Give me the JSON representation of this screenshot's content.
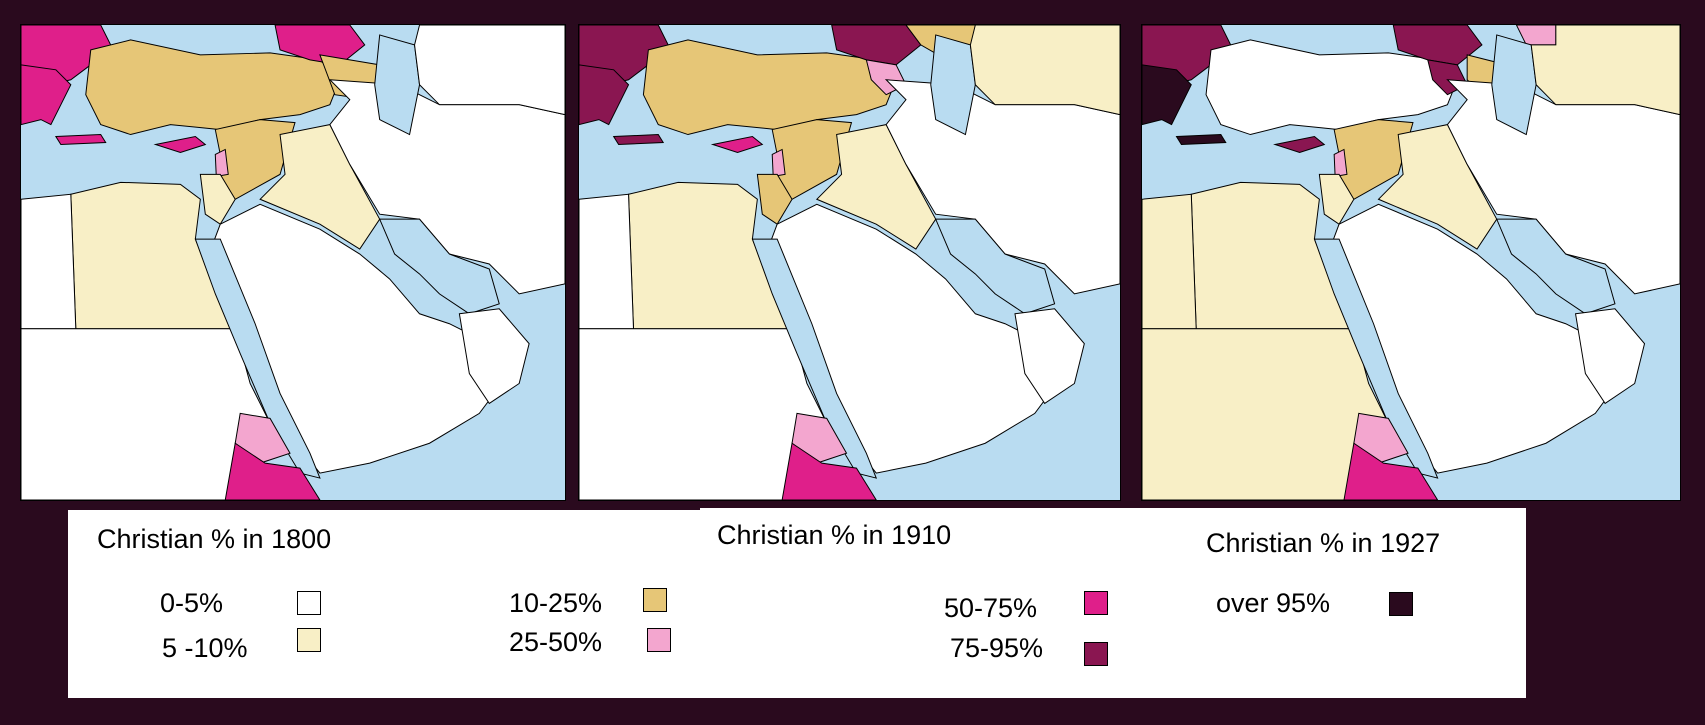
{
  "maps": [
    {
      "id": "map-1800",
      "period": "1800"
    },
    {
      "id": "map-1910",
      "period": "1910"
    },
    {
      "id": "map-1927",
      "period": "1927"
    }
  ],
  "legend": {
    "titles": [
      "Christian % in 1800",
      "Christian % in 1910",
      "Christian % in 1927"
    ],
    "classes": [
      {
        "label": "0-5%",
        "color": "#ffffff"
      },
      {
        "label": "5 -10%",
        "color": "#f8efc6"
      },
      {
        "label": "10-25%",
        "color": "#e6c677"
      },
      {
        "label": "25-50%",
        "color": "#f3a6cf"
      },
      {
        "label": "50-75%",
        "color": "#df1f8a"
      },
      {
        "label": "75-95%",
        "color": "#8a1651"
      },
      {
        "label": "over 95%",
        "color": "#2a0a1e"
      }
    ]
  },
  "colors": {
    "background": "#2a0a1e",
    "sea": "#b9dcf1",
    "border": "#000000"
  }
}
